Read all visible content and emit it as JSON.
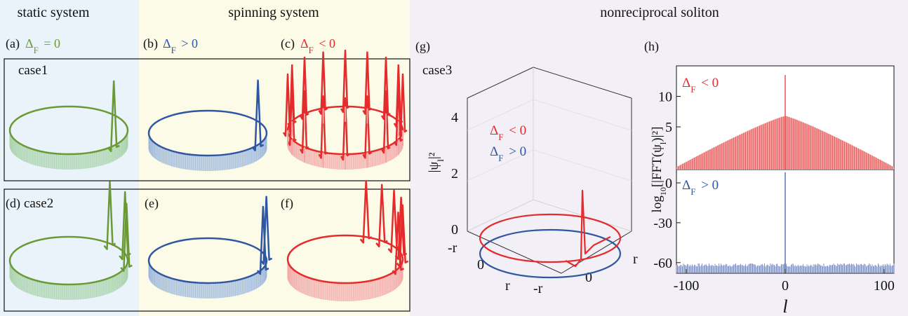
{
  "headers": {
    "static": "static system",
    "spinning": "spinning system",
    "nonreciprocal": "nonreciprocal soliton"
  },
  "panels": {
    "a": "(a)",
    "b": "(b)",
    "c": "(c)",
    "d": "(d)",
    "e": "(e)",
    "f": "(f)",
    "g": "(g)",
    "h": "(h)"
  },
  "conditions": {
    "zero": "Δ_F = 0",
    "pos": "Δ_F > 0",
    "neg": "Δ_F < 0"
  },
  "cases": {
    "c1": "case1",
    "c2": "case2",
    "c3": "case3"
  },
  "peaks": {
    "a": 1,
    "b": 1,
    "c": 16,
    "d": 3,
    "e": 2,
    "f": 6,
    "g": 1
  },
  "panel_g": {
    "zlabel": "|ψ_l|²",
    "zticks": [
      "0",
      "2",
      "4"
    ],
    "xticks": [
      "-r",
      "0",
      "r"
    ],
    "yticks": [
      "-r",
      "0",
      "r"
    ],
    "legend_neg": "Δ_F < 0",
    "legend_pos": "Δ_F > 0"
  },
  "chart_data": {
    "type": "bar",
    "xlabel": "l",
    "ylabel": "log10[|FFT(ψ_l)|²]",
    "xticks": [
      -100,
      0,
      100
    ],
    "xlim": [
      -110,
      110
    ],
    "top": {
      "label": "Δ_F < 0",
      "yticks": [
        5,
        10
      ],
      "ylim": [
        -2,
        15
      ],
      "peak": 6.8,
      "spike": 13.5,
      "edge": -1.6
    },
    "bottom": {
      "label": "Δ_F > 0",
      "yticks": [
        -60,
        -30,
        0
      ],
      "ylim": [
        -68,
        10
      ],
      "spike": 8,
      "noise_floor": -66
    }
  },
  "colors": {
    "green": "#6a9a35",
    "blue": "#2f56a2",
    "red": "#e52b2b",
    "bg_static": "#eaf3fa",
    "bg_spinning": "#fbfbe8",
    "bg_nonrecip": "#f3eff6"
  }
}
